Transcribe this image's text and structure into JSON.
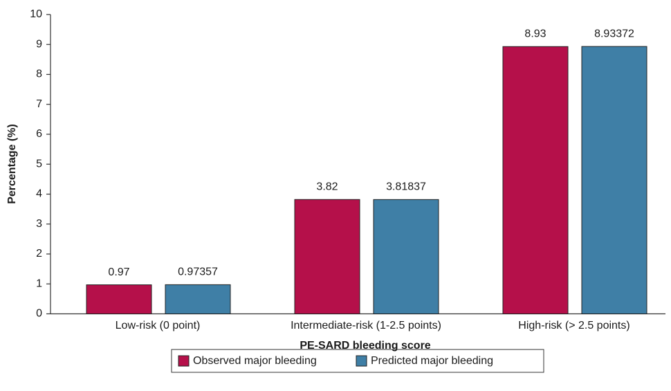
{
  "chart_data": {
    "type": "bar",
    "x_label": "PE-SARD bleeding score",
    "y_label": "Percentage (%)",
    "categories": [
      "Low-risk (0 point)",
      "Intermediate-risk (1-2.5 points)",
      "High-risk (> 2.5 points)"
    ],
    "series": [
      {
        "name": "Observed major bleeding",
        "color": "#b5104a",
        "values": [
          0.97,
          3.82,
          8.93
        ]
      },
      {
        "name": "Predicted major bleeding",
        "color": "#3f7fa6",
        "values": [
          0.97357,
          3.81837,
          8.93372
        ]
      }
    ],
    "ylim": [
      0,
      10
    ],
    "yticks": [
      0,
      1,
      2,
      3,
      4,
      5,
      6,
      7,
      8,
      9,
      10
    ],
    "legend": "bottom"
  }
}
